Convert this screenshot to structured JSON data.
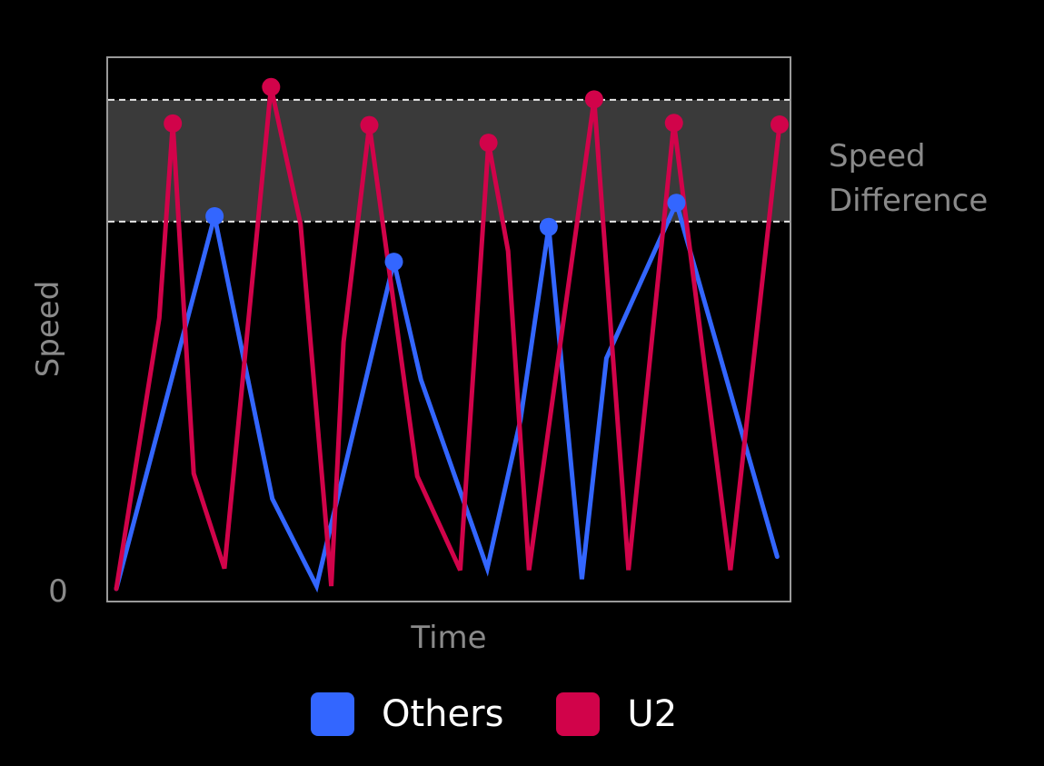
{
  "chart_data": {
    "type": "line",
    "xlabel": "Time",
    "ylabel": "Speed",
    "yticks": [
      "0"
    ],
    "ylim": [
      0,
      100
    ],
    "grid": false,
    "legend_position": "bottom",
    "band": {
      "label_lines": [
        "Speed",
        "Difference"
      ],
      "y_range": [
        68.5,
        91.2
      ],
      "color": "#3a3a3a"
    },
    "series": [
      {
        "name": "Others",
        "color": "#3366ff",
        "points": [
          {
            "x": 0,
            "y": 0,
            "marker": false
          },
          {
            "x": 8.0,
            "y": 69.5,
            "marker": true
          },
          {
            "x": 12.7,
            "y": 16.8,
            "marker": false
          },
          {
            "x": 16.3,
            "y": 0.5,
            "marker": false
          },
          {
            "x": 22.6,
            "y": 61.0,
            "marker": true
          },
          {
            "x": 24.8,
            "y": 39.0,
            "marker": false
          },
          {
            "x": 30.2,
            "y": 3.8,
            "marker": false
          },
          {
            "x": 32.9,
            "y": 31.5,
            "marker": false
          },
          {
            "x": 35.2,
            "y": 67.5,
            "marker": true
          },
          {
            "x": 37.9,
            "y": 1.8,
            "marker": false
          },
          {
            "x": 39.9,
            "y": 43.0,
            "marker": false
          },
          {
            "x": 45.6,
            "y": 72.0,
            "marker": true
          },
          {
            "x": 53.8,
            "y": 6.0,
            "marker": false
          }
        ]
      },
      {
        "name": "U2",
        "color": "#d1034a",
        "points": [
          {
            "x": 0,
            "y": 0,
            "marker": false
          },
          {
            "x": 3.5,
            "y": 50.5,
            "marker": false
          },
          {
            "x": 4.6,
            "y": 86.8,
            "marker": true
          },
          {
            "x": 6.3,
            "y": 21.5,
            "marker": false
          },
          {
            "x": 8.8,
            "y": 3.8,
            "marker": false
          },
          {
            "x": 12.6,
            "y": 93.6,
            "marker": true
          },
          {
            "x": 15.0,
            "y": 68.0,
            "marker": false
          },
          {
            "x": 17.5,
            "y": 0.5,
            "marker": false
          },
          {
            "x": 18.5,
            "y": 46.0,
            "marker": false
          },
          {
            "x": 20.6,
            "y": 86.5,
            "marker": true
          },
          {
            "x": 24.5,
            "y": 21.0,
            "marker": false
          },
          {
            "x": 28.0,
            "y": 3.5,
            "marker": false
          },
          {
            "x": 30.3,
            "y": 83.2,
            "marker": true
          },
          {
            "x": 31.9,
            "y": 63.0,
            "marker": false
          },
          {
            "x": 33.6,
            "y": 3.5,
            "marker": false
          },
          {
            "x": 38.9,
            "y": 91.3,
            "marker": true
          },
          {
            "x": 41.7,
            "y": 3.5,
            "marker": false
          },
          {
            "x": 45.4,
            "y": 86.9,
            "marker": true
          },
          {
            "x": 50.0,
            "y": 3.5,
            "marker": false
          },
          {
            "x": 54.0,
            "y": 86.6,
            "marker": true
          }
        ]
      }
    ]
  }
}
